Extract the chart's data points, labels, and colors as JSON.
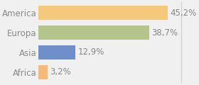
{
  "categories": [
    "Africa",
    "Asia",
    "Europa",
    "America"
  ],
  "values": [
    3.2,
    12.9,
    38.7,
    45.2
  ],
  "labels": [
    "3,2%",
    "12,9%",
    "38,7%",
    "45,2%"
  ],
  "bar_colors": [
    "#f5b97a",
    "#6e8fc9",
    "#b5c48a",
    "#f5c97a"
  ],
  "background_color": "#f0f0f0",
  "text_color": "#888888",
  "xlim": [
    0,
    55
  ],
  "bar_height": 0.72,
  "label_fontsize": 8.5,
  "tick_fontsize": 8.5,
  "vline_x": 50,
  "vline_color": "#cccccc"
}
